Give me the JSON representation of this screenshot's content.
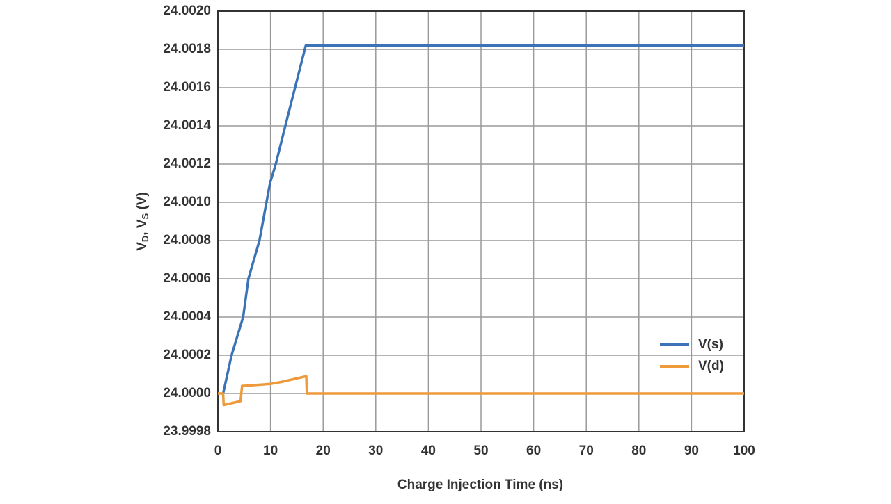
{
  "chart_data": {
    "type": "line",
    "x_label": "Charge Injection Time (ns)",
    "y_label": [
      {
        "text": "V"
      },
      {
        "text": "D",
        "sub": true
      },
      {
        "text": ", V"
      },
      {
        "text": "S",
        "sub": true
      },
      {
        "text": " (V)"
      }
    ],
    "xlim": [
      0,
      100
    ],
    "xticks": [
      0,
      10,
      20,
      30,
      40,
      50,
      60,
      70,
      80,
      90,
      100
    ],
    "ylim": [
      23.9998,
      24.002
    ],
    "yticks": [
      23.9998,
      {
        "value": 24,
        "label": "24.0000"
      },
      24.0002,
      24.0004,
      24.0006,
      24.0008,
      {
        "value": 24.001,
        "label": "24.0010"
      },
      24.0012,
      24.0014,
      24.0016,
      24.0018,
      {
        "value": 24.002,
        "label": "24.0020"
      }
    ],
    "grid": true,
    "legend": "lower right",
    "series": [
      {
        "name": "V(s)",
        "color": "#3b73b6",
        "x": [
          1.0,
          2.6,
          4.8,
          5.8,
          7.9,
          9.9,
          11,
          13,
          16.7,
          100
        ],
        "values": [
          24.0,
          24.0002,
          24.0004,
          24.0006,
          24.0008,
          24.0011,
          24.0012,
          24.00142,
          24.00182,
          24.00182
        ]
      },
      {
        "name": "V(d)",
        "color": "#ee9a3a",
        "x": [
          0,
          1.0,
          1.1,
          4.3,
          4.6,
          5,
          10,
          12,
          16.8,
          16.9,
          100
        ],
        "values": [
          24.0,
          24.0,
          23.99994,
          23.99996,
          24.00004,
          24.00004,
          24.00005,
          24.00006,
          24.00009,
          24.0,
          24.0
        ]
      }
    ]
  }
}
